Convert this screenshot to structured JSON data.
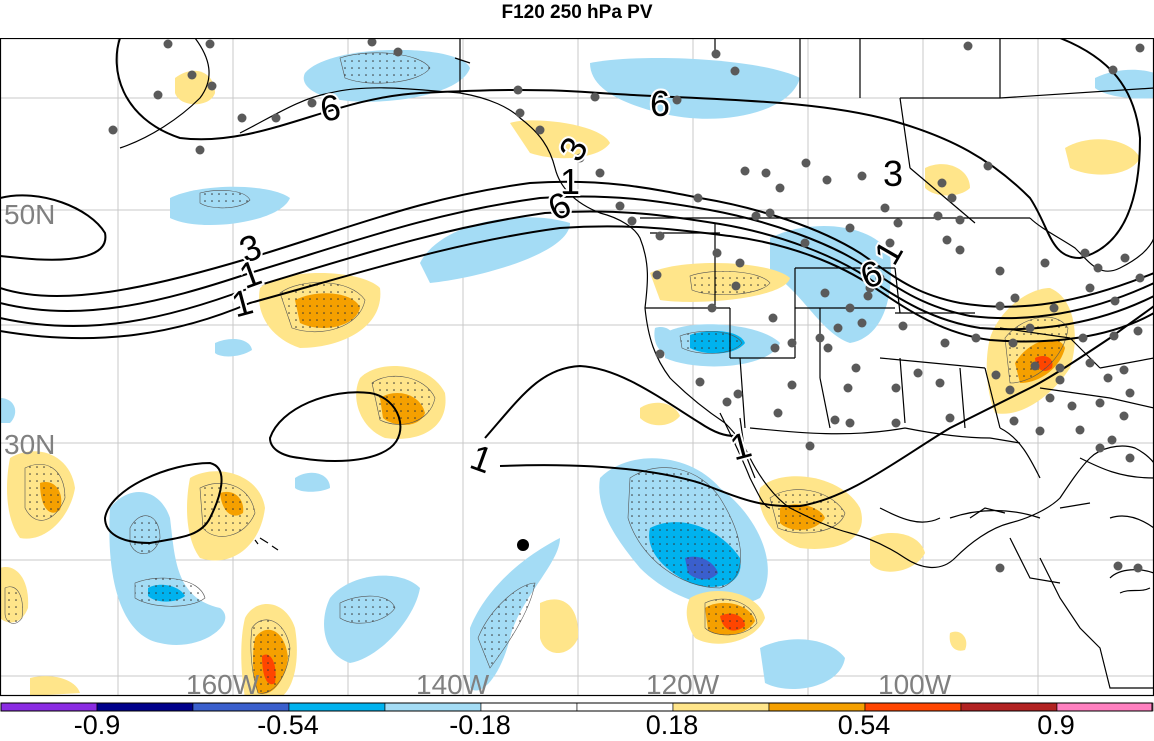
{
  "title": "F120 250 hPa PV",
  "map": {
    "lat_labels": [
      "50N",
      "30N"
    ],
    "lon_labels": [
      "160W",
      "140W",
      "120W",
      "100W"
    ],
    "contour_labels": [
      "6",
      "3",
      "1",
      "6",
      "6",
      "3",
      "1",
      "6",
      "3",
      "1",
      "1",
      "1"
    ],
    "label_color": "#808080",
    "land_color": "#ffffff",
    "contour_color": "#000000",
    "station_color": "#5a5a5a"
  },
  "colorbar": {
    "colors": [
      "#8a2be2",
      "#00008b",
      "#3a5fcd",
      "#00b2ee",
      "#a4dcf5",
      "#ffffff",
      "#ffffff",
      "#ffe58a",
      "#f5a000",
      "#ff4500",
      "#b22222",
      "#ff80c0"
    ],
    "labels": [
      "-0.9",
      "-0.54",
      "-0.18",
      "0.18",
      "0.54",
      "0.9"
    ]
  }
}
